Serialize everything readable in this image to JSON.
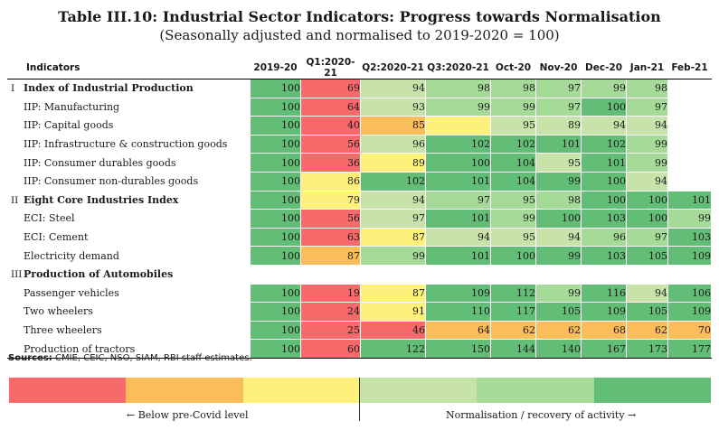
{
  "title": "Table III.10: Industrial Sector Indicators: Progress towards Normalisation",
  "subtitle": "(Seasonally adjusted and normalised to 2019-2020 = 100)",
  "header": {
    "indicators_label": "Indicators",
    "columns": [
      "2019-20",
      "Q1:2020-21",
      "Q2:2020-21",
      "Q3:2020-21",
      "Oct-20",
      "Nov-20",
      "Dec-20",
      "Jan-21",
      "Feb-21"
    ]
  },
  "colors": {
    "red": "#f7696b",
    "orange": "#fbbc5a",
    "yellow": "#fef17b",
    "lightgreen1": "#c8e3a9",
    "lightgreen2": "#a6da98",
    "green": "#62bd76",
    "white": "#ffffff"
  },
  "rows": [
    {
      "roman": "I",
      "label": "Index of Industrial Production",
      "bold": true,
      "values": [
        "100",
        "69",
        "94",
        "98",
        "98",
        "97",
        "99",
        "98",
        ""
      ],
      "colors": [
        "green",
        "red",
        "lightgreen1",
        "lightgreen2",
        "lightgreen2",
        "lightgreen2",
        "lightgreen2",
        "lightgreen2",
        "white"
      ]
    },
    {
      "roman": "",
      "label": "IIP: Manufacturing",
      "bold": false,
      "values": [
        "100",
        "64",
        "93",
        "99",
        "99",
        "97",
        "100",
        "97",
        ""
      ],
      "colors": [
        "green",
        "red",
        "lightgreen1",
        "lightgreen2",
        "lightgreen2",
        "lightgreen2",
        "green",
        "lightgreen2",
        "white"
      ]
    },
    {
      "roman": "",
      "label": "IIP: Capital goods",
      "bold": false,
      "values": [
        "100",
        "40",
        "85",
        "",
        "95",
        "89",
        "94",
        "94",
        ""
      ],
      "colors": [
        "green",
        "red",
        "orange",
        "yellow",
        "lightgreen1",
        "lightgreen1",
        "lightgreen1",
        "lightgreen1",
        "white"
      ]
    },
    {
      "roman": "",
      "label": "IIP: Infrastructure & construction goods",
      "bold": false,
      "values": [
        "100",
        "56",
        "96",
        "102",
        "102",
        "101",
        "102",
        "99",
        ""
      ],
      "colors": [
        "green",
        "red",
        "lightgreen1",
        "green",
        "green",
        "green",
        "green",
        "lightgreen2",
        "white"
      ]
    },
    {
      "roman": "",
      "label": "IIP: Consumer durables goods",
      "bold": false,
      "values": [
        "100",
        "36",
        "89",
        "100",
        "104",
        "95",
        "101",
        "99",
        ""
      ],
      "colors": [
        "green",
        "red",
        "yellow",
        "green",
        "green",
        "lightgreen1",
        "green",
        "lightgreen2",
        "white"
      ]
    },
    {
      "roman": "",
      "label": "IIP: Consumer non-durables goods",
      "bold": false,
      "values": [
        "100",
        "86",
        "102",
        "101",
        "104",
        "99",
        "100",
        "94",
        ""
      ],
      "colors": [
        "green",
        "yellow",
        "green",
        "green",
        "green",
        "green",
        "green",
        "lightgreen1",
        "white"
      ]
    },
    {
      "roman": "II",
      "label": "Eight Core Industries Index",
      "bold": true,
      "values": [
        "100",
        "79",
        "94",
        "97",
        "95",
        "98",
        "100",
        "100",
        "101"
      ],
      "colors": [
        "green",
        "yellow",
        "lightgreen1",
        "lightgreen2",
        "lightgreen2",
        "lightgreen2",
        "green",
        "green",
        "green"
      ]
    },
    {
      "roman": "",
      "label": "ECI: Steel",
      "bold": false,
      "values": [
        "100",
        "56",
        "97",
        "101",
        "99",
        "100",
        "103",
        "100",
        "99"
      ],
      "colors": [
        "green",
        "red",
        "lightgreen1",
        "green",
        "lightgreen2",
        "green",
        "green",
        "green",
        "lightgreen2"
      ]
    },
    {
      "roman": "",
      "label": "ECI: Cement",
      "bold": false,
      "values": [
        "100",
        "63",
        "87",
        "94",
        "95",
        "94",
        "96",
        "97",
        "103"
      ],
      "colors": [
        "green",
        "red",
        "yellow",
        "lightgreen1",
        "lightgreen1",
        "lightgreen1",
        "lightgreen2",
        "lightgreen2",
        "green"
      ]
    },
    {
      "roman": "",
      "label": "Electricity demand",
      "bold": false,
      "values": [
        "100",
        "87",
        "99",
        "101",
        "100",
        "99",
        "103",
        "105",
        "109"
      ],
      "colors": [
        "green",
        "orange",
        "lightgreen2",
        "green",
        "green",
        "green",
        "green",
        "green",
        "green"
      ]
    },
    {
      "roman": "III",
      "label": "Production of Automobiles",
      "bold": true,
      "values": [
        "",
        "",
        "",
        "",
        "",
        "",
        "",
        "",
        ""
      ],
      "colors": [
        "white",
        "white",
        "white",
        "white",
        "white",
        "white",
        "white",
        "white",
        "white"
      ]
    },
    {
      "roman": "",
      "label": "Passenger vehicles",
      "bold": false,
      "values": [
        "100",
        "19",
        "87",
        "109",
        "112",
        "99",
        "116",
        "94",
        "106"
      ],
      "colors": [
        "green",
        "red",
        "yellow",
        "green",
        "green",
        "lightgreen2",
        "green",
        "lightgreen1",
        "green"
      ]
    },
    {
      "roman": "",
      "label": "Two wheelers",
      "bold": false,
      "values": [
        "100",
        "24",
        "91",
        "110",
        "117",
        "105",
        "109",
        "105",
        "109"
      ],
      "colors": [
        "green",
        "red",
        "yellow",
        "green",
        "green",
        "green",
        "green",
        "green",
        "green"
      ]
    },
    {
      "roman": "",
      "label": "Three wheelers",
      "bold": false,
      "values": [
        "100",
        "25",
        "46",
        "64",
        "62",
        "62",
        "68",
        "62",
        "70"
      ],
      "colors": [
        "green",
        "red",
        "red",
        "orange",
        "orange",
        "orange",
        "orange",
        "orange",
        "orange"
      ]
    },
    {
      "roman": "",
      "label": "Production of tractors",
      "bold": false,
      "values": [
        "100",
        "60",
        "122",
        "150",
        "144",
        "140",
        "167",
        "173",
        "177"
      ],
      "colors": [
        "green",
        "red",
        "green",
        "green",
        "green",
        "green",
        "green",
        "green",
        "green"
      ]
    }
  ],
  "sources": {
    "label": "Sources:",
    "text": " CMIE, CEIC, NSO, SIAM, RBI staff estimates."
  },
  "legend": {
    "colors": [
      "#f7696b",
      "#fbbc5a",
      "#fef17b",
      "#c8e3a9",
      "#a6da98",
      "#62bd76"
    ],
    "left_text": "← Below pre-Covid level",
    "right_text": "Normalisation / recovery of activity →"
  }
}
